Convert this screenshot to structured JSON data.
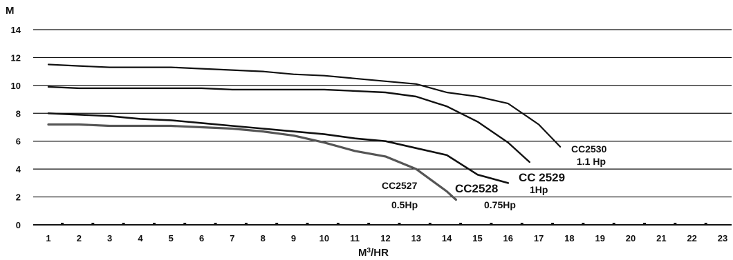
{
  "chart_data": {
    "type": "line",
    "title": "",
    "ylabel": "M",
    "xlabel_base": "M",
    "xlabel_sup": "3",
    "xlabel_rest": "/HR",
    "xlim": [
      1,
      23
    ],
    "ylim": [
      0,
      14
    ],
    "yticks": [
      0,
      2,
      4,
      6,
      8,
      10,
      12,
      14
    ],
    "xticks": [
      1,
      2,
      3,
      4,
      5,
      6,
      7,
      8,
      9,
      10,
      11,
      12,
      13,
      14,
      15,
      16,
      17,
      18,
      19,
      20,
      21,
      22,
      23
    ],
    "grid": "horizontal",
    "series": [
      {
        "name": "CC2530",
        "sub": "1.1 Hp",
        "color": "#111111",
        "x": [
          1,
          2,
          3,
          4,
          5,
          6,
          7,
          8,
          9,
          10,
          11,
          12,
          13,
          14,
          15,
          16,
          17,
          17.7
        ],
        "y": [
          11.5,
          11.4,
          11.3,
          11.3,
          11.3,
          11.2,
          11.1,
          11.0,
          10.8,
          10.7,
          10.5,
          10.3,
          10.1,
          9.5,
          9.2,
          8.7,
          7.2,
          5.6
        ]
      },
      {
        "name": "CC 2529",
        "sub": "1Hp",
        "color": "#111111",
        "x": [
          1,
          2,
          3,
          4,
          5,
          6,
          7,
          8,
          9,
          10,
          11,
          12,
          13,
          14,
          15,
          16,
          16.7
        ],
        "y": [
          9.9,
          9.8,
          9.8,
          9.8,
          9.8,
          9.8,
          9.7,
          9.7,
          9.7,
          9.7,
          9.6,
          9.5,
          9.2,
          8.5,
          7.4,
          5.9,
          4.5
        ]
      },
      {
        "name": "CC2528",
        "sub": "0.75Hp",
        "color": "#111111",
        "x": [
          1,
          2,
          3,
          4,
          5,
          6,
          7,
          8,
          9,
          10,
          11,
          12,
          13,
          14,
          15,
          16
        ],
        "y": [
          8.0,
          7.9,
          7.8,
          7.6,
          7.5,
          7.3,
          7.1,
          6.9,
          6.7,
          6.5,
          6.2,
          6.0,
          5.5,
          5.0,
          3.6,
          3.0
        ]
      },
      {
        "name": "CC2527",
        "sub": "0.5Hp",
        "color": "#555555",
        "x": [
          1,
          2,
          3,
          4,
          5,
          6,
          7,
          8,
          9,
          10,
          11,
          12,
          13,
          14,
          14.3
        ],
        "y": [
          7.2,
          7.2,
          7.1,
          7.1,
          7.1,
          7.0,
          6.9,
          6.7,
          6.4,
          5.9,
          5.3,
          4.9,
          4.0,
          2.4,
          1.8
        ]
      }
    ]
  }
}
